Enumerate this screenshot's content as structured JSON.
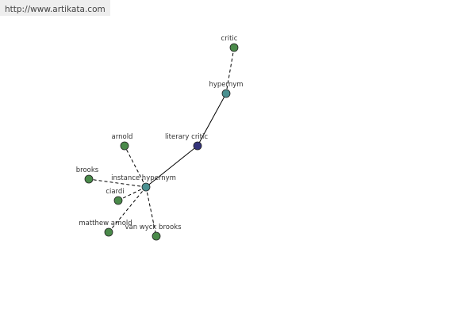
{
  "watermark": "http://www.artikata.com",
  "nodes": [
    {
      "label": "critic"
    },
    {
      "label": "hypernym"
    },
    {
      "label": "literary critic"
    },
    {
      "label": "instance hypernym"
    },
    {
      "label": "arnold"
    },
    {
      "label": "brooks"
    },
    {
      "label": "ciardi"
    },
    {
      "label": "matthew arnold"
    },
    {
      "label": "van wyck brooks"
    }
  ]
}
